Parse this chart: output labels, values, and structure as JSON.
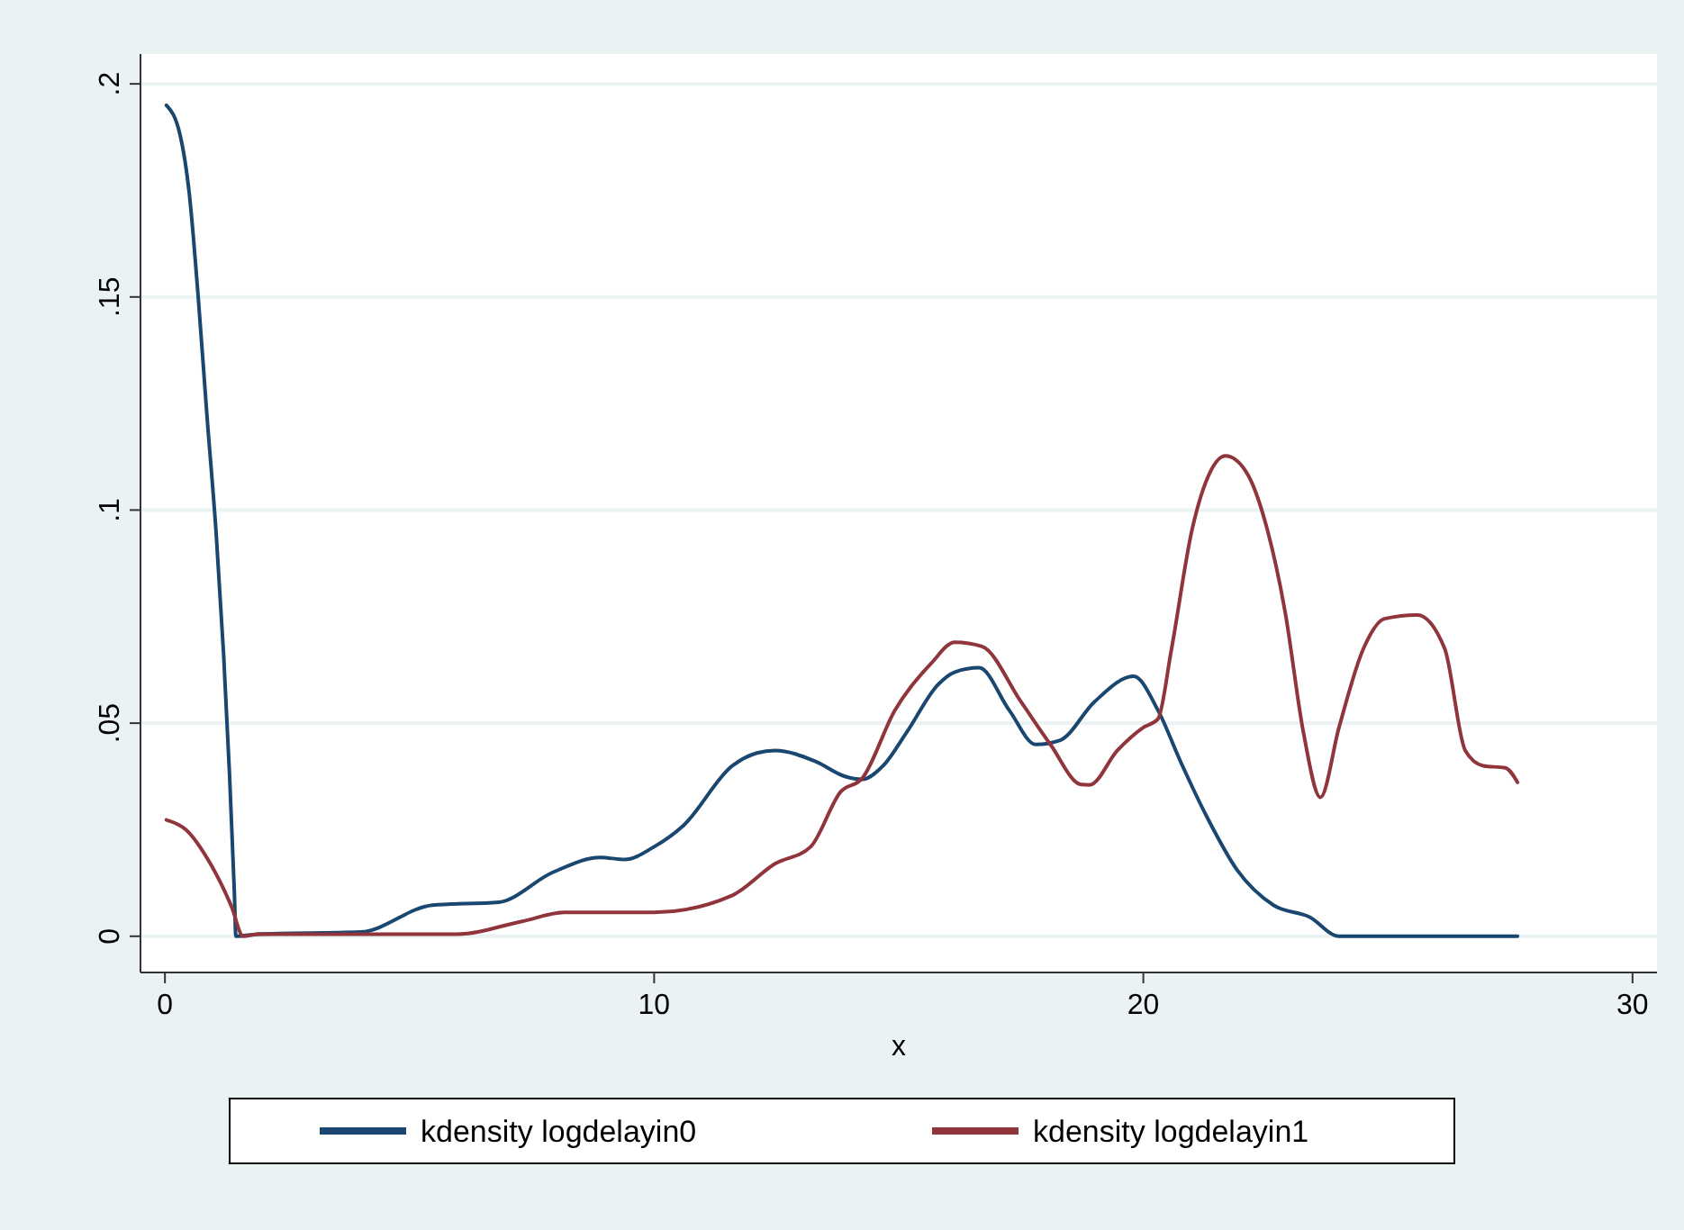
{
  "chart_data": {
    "type": "line",
    "xlabel": "x",
    "xlim": [
      -0.5,
      30.5
    ],
    "xticks": [
      0,
      10,
      20,
      30
    ],
    "ylim": [
      -0.0085,
      0.207
    ],
    "yticks": [
      0,
      {
        "value": 0.05,
        "label": ".05"
      },
      {
        "value": 0.1,
        "label": ".1"
      },
      {
        "value": 0.15,
        "label": ".15"
      },
      {
        "value": 0.2,
        "label": ".2"
      }
    ],
    "grid": "y",
    "legend": "bottom",
    "marker": "none",
    "line_style": "solid",
    "series": [
      {
        "name": "kdensity logdelayin0",
        "color": "#1a476f",
        "x": [
          0.03,
          0.31,
          0.5,
          0.68,
          0.86,
          1.05,
          1.2,
          1.32,
          1.42,
          1.45,
          1.9,
          4.0,
          5.47,
          6.82,
          7.93,
          8.9,
          9.4,
          10.0,
          10.6,
          11.6,
          12.1,
          12.47,
          13.3,
          13.9,
          14.25,
          14.68,
          15.17,
          15.8,
          16.15,
          16.64,
          17.26,
          17.8,
          18.3,
          19.0,
          19.8,
          20.3,
          20.76,
          21.3,
          21.92,
          22.66,
          23.4,
          24.0,
          27.65
        ],
        "values": [
          0.195,
          0.188,
          0.174,
          0.15,
          0.122,
          0.094,
          0.066,
          0.038,
          0.01,
          0,
          0.0005,
          0.001,
          0.0073,
          0.008,
          0.015,
          0.0185,
          0.018,
          0.021,
          0.026,
          0.04,
          0.043,
          0.0436,
          0.041,
          0.0375,
          0.0368,
          0.04,
          0.048,
          0.059,
          0.062,
          0.063,
          0.053,
          0.045,
          0.046,
          0.055,
          0.061,
          0.053,
          0.041,
          0.028,
          0.0155,
          0.0073,
          0.0045,
          0,
          0
        ]
      },
      {
        "name": "kdensity logdelayin1",
        "color": "#90353b",
        "x": [
          0.03,
          0.43,
          0.93,
          1.36,
          1.6,
          1.9,
          5.96,
          7.3,
          8.17,
          8.9,
          10.0,
          11.6,
          12.47,
          13.2,
          13.82,
          14.25,
          14.92,
          15.66,
          16.15,
          16.7,
          17.5,
          18.1,
          18.73,
          18.9,
          19.47,
          20.0,
          20.3,
          20.57,
          21.0,
          21.37,
          21.68,
          22.1,
          22.53,
          22.9,
          23.27,
          23.62,
          24.0,
          24.5,
          24.93,
          25.6,
          26.16,
          26.58,
          26.95,
          27.4,
          27.65
        ],
        "values": [
          0.0273,
          0.025,
          0.017,
          0.007,
          0,
          0.0005,
          0.0005,
          0.0035,
          0.0056,
          0.0056,
          0.0056,
          0.0096,
          0.017,
          0.021,
          0.034,
          0.037,
          0.053,
          0.064,
          0.069,
          0.068,
          0.055,
          0.045,
          0.0356,
          0.0355,
          0.0436,
          0.049,
          0.051,
          0.067,
          0.0956,
          0.109,
          0.1127,
          0.109,
          0.0956,
          0.076,
          0.048,
          0.0326,
          0.049,
          0.0675,
          0.0745,
          0.0754,
          0.0675,
          0.0436,
          0.04,
          0.0395,
          0.0361
        ]
      }
    ]
  }
}
